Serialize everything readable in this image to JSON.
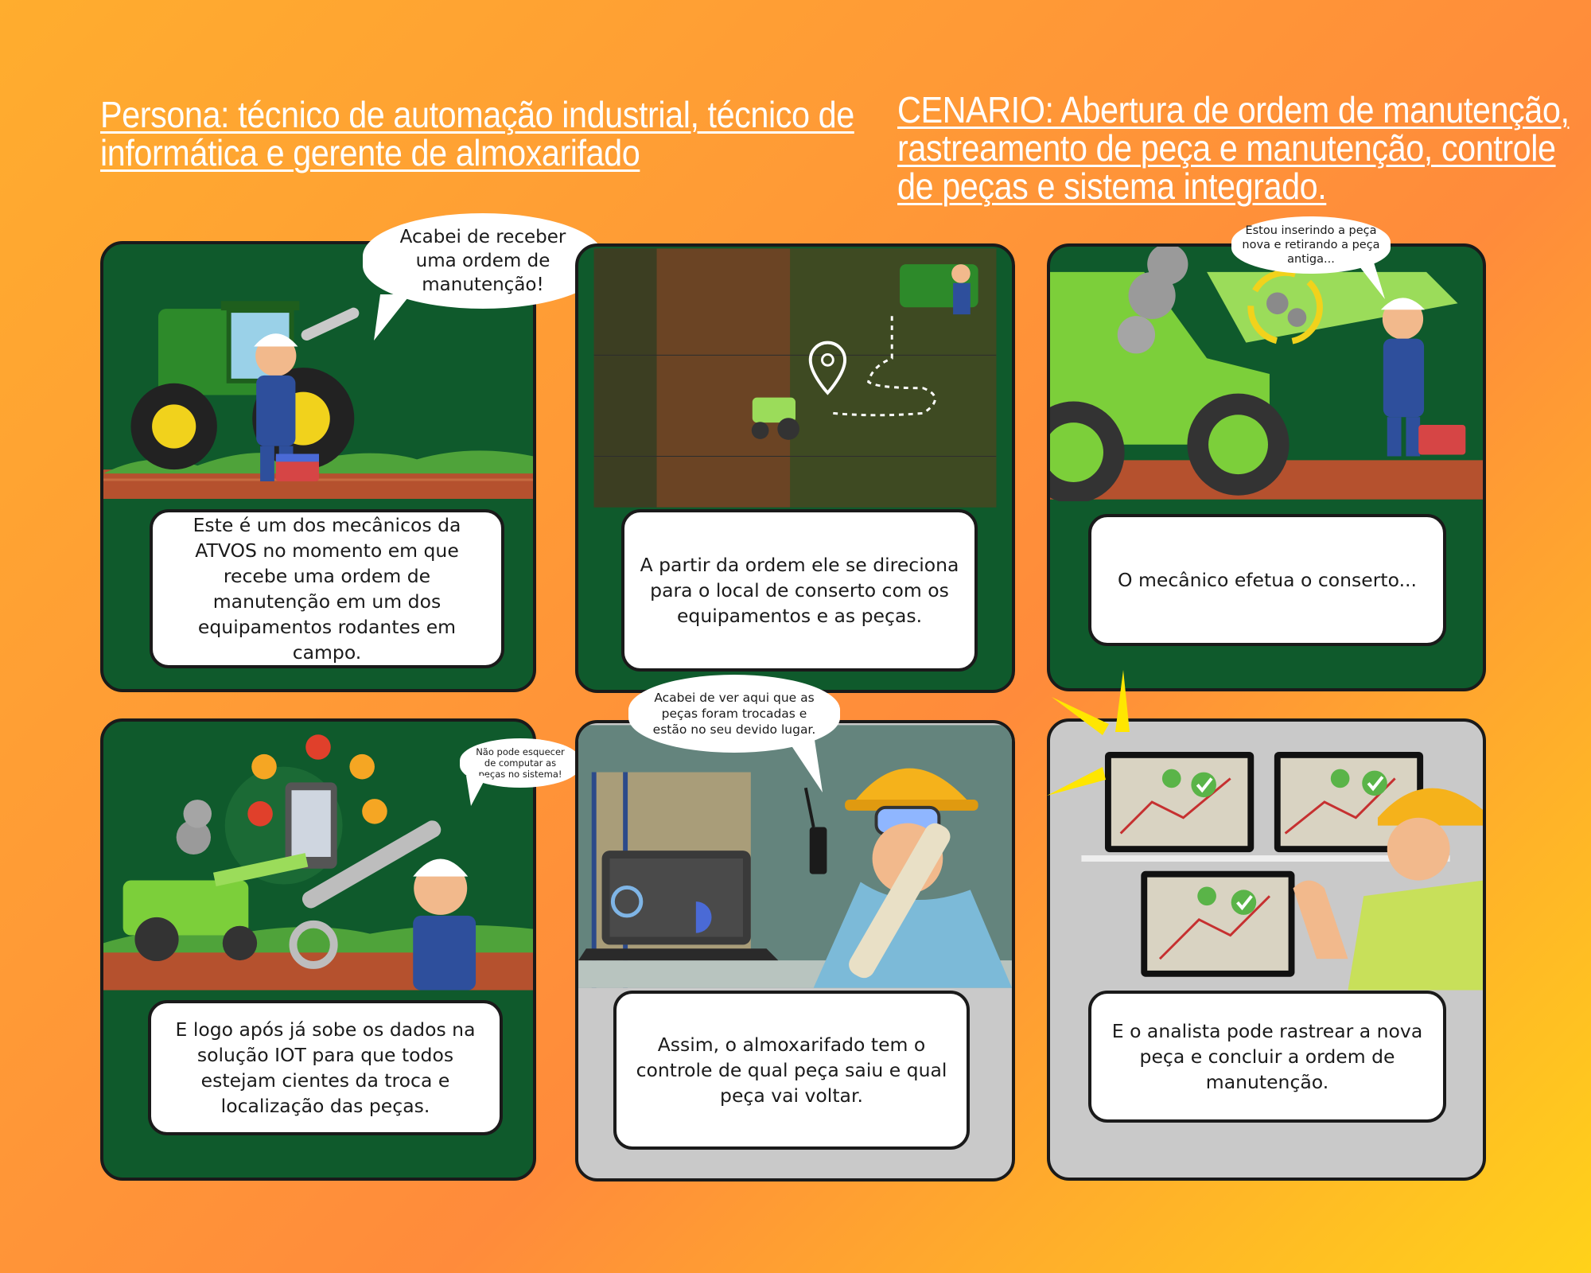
{
  "header": {
    "persona": "Persona: técnico de automação industrial, técnico de informática e gerente de almoxarifado",
    "cenario": "CENARIO: Abertura de ordem de manutenção, rastreamento de peça e manutenção, controle de peças e sistema integrado."
  },
  "panels": [
    {
      "speech": "Acabei de receber uma ordem de manutenção!",
      "caption": "Este é um dos mecânicos da ATVOS no momento em que recebe uma ordem de manutenção em um dos equipamentos rodantes em campo."
    },
    {
      "caption": "A partir da ordem ele se direciona para o local de conserto com os equipamentos e as peças."
    },
    {
      "speech": "Estou inserindo a peça nova e retirando a peça antiga...",
      "caption": "O mecânico efetua o conserto..."
    },
    {
      "speech": "Não pode esquecer de computar as peças no sistema!",
      "caption": "E logo após já sobe os dados na solução IOT para que todos estejam cientes da troca e localização das peças."
    },
    {
      "speech": "Acabei de ver aqui que as peças foram trocadas e estão no seu devido lugar.",
      "caption": "Assim, o almoxarifado tem o controle de qual peça saiu e qual peça vai voltar."
    },
    {
      "caption": "E o analista pode rastrear a nova peça e concluir a ordem de manutenção."
    }
  ],
  "colors": {
    "panel_green": "#0f5a2c",
    "panel_gray": "#c9c9c9",
    "tractor_green": "#7ccf3a",
    "soil": "#b5512e"
  },
  "icons": [
    "tractor-icon",
    "mechanic-icon",
    "wrench-icon",
    "toolbox-icon",
    "location-pin-icon",
    "gear-icon",
    "smoke-icon",
    "tablet-icon",
    "laptop-icon",
    "walkie-talkie-icon",
    "map-monitor-icon",
    "checkmark-icon",
    "hard-hat-icon"
  ]
}
